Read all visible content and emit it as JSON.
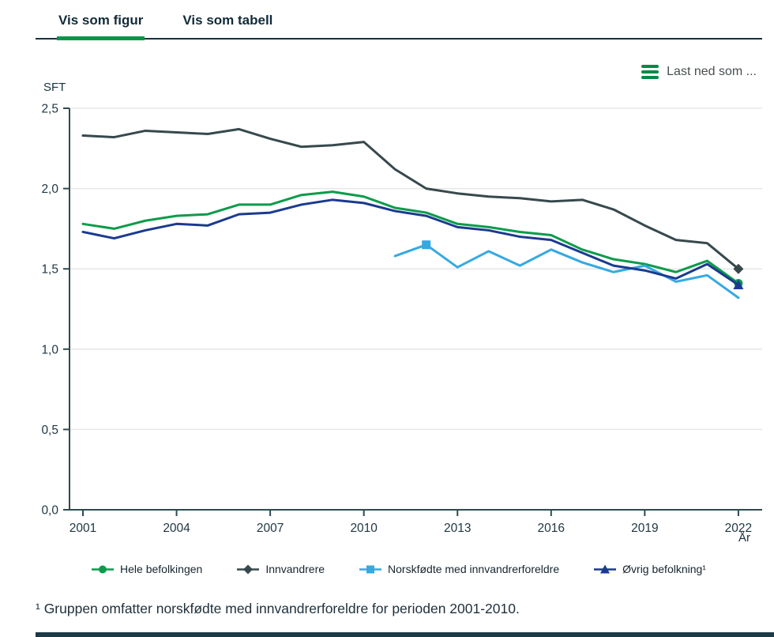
{
  "tabs": {
    "figure_label": "Vis som figur",
    "table_label": "Vis som tabell",
    "active": "figure"
  },
  "toolbar": {
    "download_label": "Last ned som ..."
  },
  "footnote": "¹ Gruppen omfatter norskfødte med innvandrerforeldre for perioden 2001-2010.",
  "colors": {
    "accent_green": "#049549",
    "tab_text": "#112b38",
    "axis": "#2e4a52",
    "grid": "#e7e7e7",
    "tick_text": "#1f3640",
    "download_text": "#4a4f52",
    "bottom_bar": "#1d3a47"
  },
  "chart_data": {
    "type": "line",
    "title": "",
    "ylabel": "SFT",
    "xlabel": "År",
    "ylim": [
      0,
      2.5
    ],
    "grid": true,
    "legend_position": "bottom",
    "y_ticks": [
      {
        "value": 0.0,
        "label": "0,0"
      },
      {
        "value": 0.5,
        "label": "0,5"
      },
      {
        "value": 1.0,
        "label": "1,0"
      },
      {
        "value": 1.5,
        "label": "1,5"
      },
      {
        "value": 2.0,
        "label": "2,0"
      },
      {
        "value": 2.5,
        "label": "2,5"
      }
    ],
    "x": [
      2001,
      2002,
      2003,
      2004,
      2005,
      2006,
      2007,
      2008,
      2009,
      2010,
      2011,
      2012,
      2013,
      2014,
      2015,
      2016,
      2017,
      2018,
      2019,
      2020,
      2021,
      2022
    ],
    "x_tick_labels": [
      2001,
      2004,
      2007,
      2010,
      2013,
      2016,
      2019,
      2022
    ],
    "series": [
      {
        "name": "Hele befolkingen",
        "color": "#0c9b4b",
        "marker": "circle",
        "marker_years": [
          2022
        ],
        "values": [
          1.78,
          1.75,
          1.8,
          1.83,
          1.84,
          1.9,
          1.9,
          1.96,
          1.98,
          1.95,
          1.88,
          1.85,
          1.78,
          1.76,
          1.73,
          1.71,
          1.62,
          1.56,
          1.53,
          1.48,
          1.55,
          1.41
        ]
      },
      {
        "name": "Innvandrere",
        "color": "#36494c",
        "marker": "diamond",
        "marker_years": [
          2022
        ],
        "values": [
          2.33,
          2.32,
          2.36,
          2.35,
          2.34,
          2.37,
          2.31,
          2.26,
          2.27,
          2.29,
          2.12,
          2.0,
          1.97,
          1.95,
          1.94,
          1.92,
          1.93,
          1.87,
          1.77,
          1.68,
          1.66,
          1.5
        ]
      },
      {
        "name": "Norskfødte med innvandrerforeldre",
        "color": "#36a9e1",
        "marker": "square",
        "marker_years": [
          2012
        ],
        "values": [
          null,
          null,
          null,
          null,
          null,
          null,
          null,
          null,
          null,
          null,
          1.58,
          1.65,
          1.51,
          1.61,
          1.52,
          1.62,
          1.54,
          1.48,
          1.52,
          1.42,
          1.46,
          1.32
        ]
      },
      {
        "name": "Øvrig befolkning¹",
        "color": "#1b3a8f",
        "marker": "triangle",
        "marker_years": [
          2022
        ],
        "values": [
          1.73,
          1.69,
          1.74,
          1.78,
          1.77,
          1.84,
          1.85,
          1.9,
          1.93,
          1.91,
          1.86,
          1.83,
          1.76,
          1.74,
          1.7,
          1.68,
          1.6,
          1.52,
          1.49,
          1.44,
          1.53,
          1.4
        ]
      }
    ]
  }
}
